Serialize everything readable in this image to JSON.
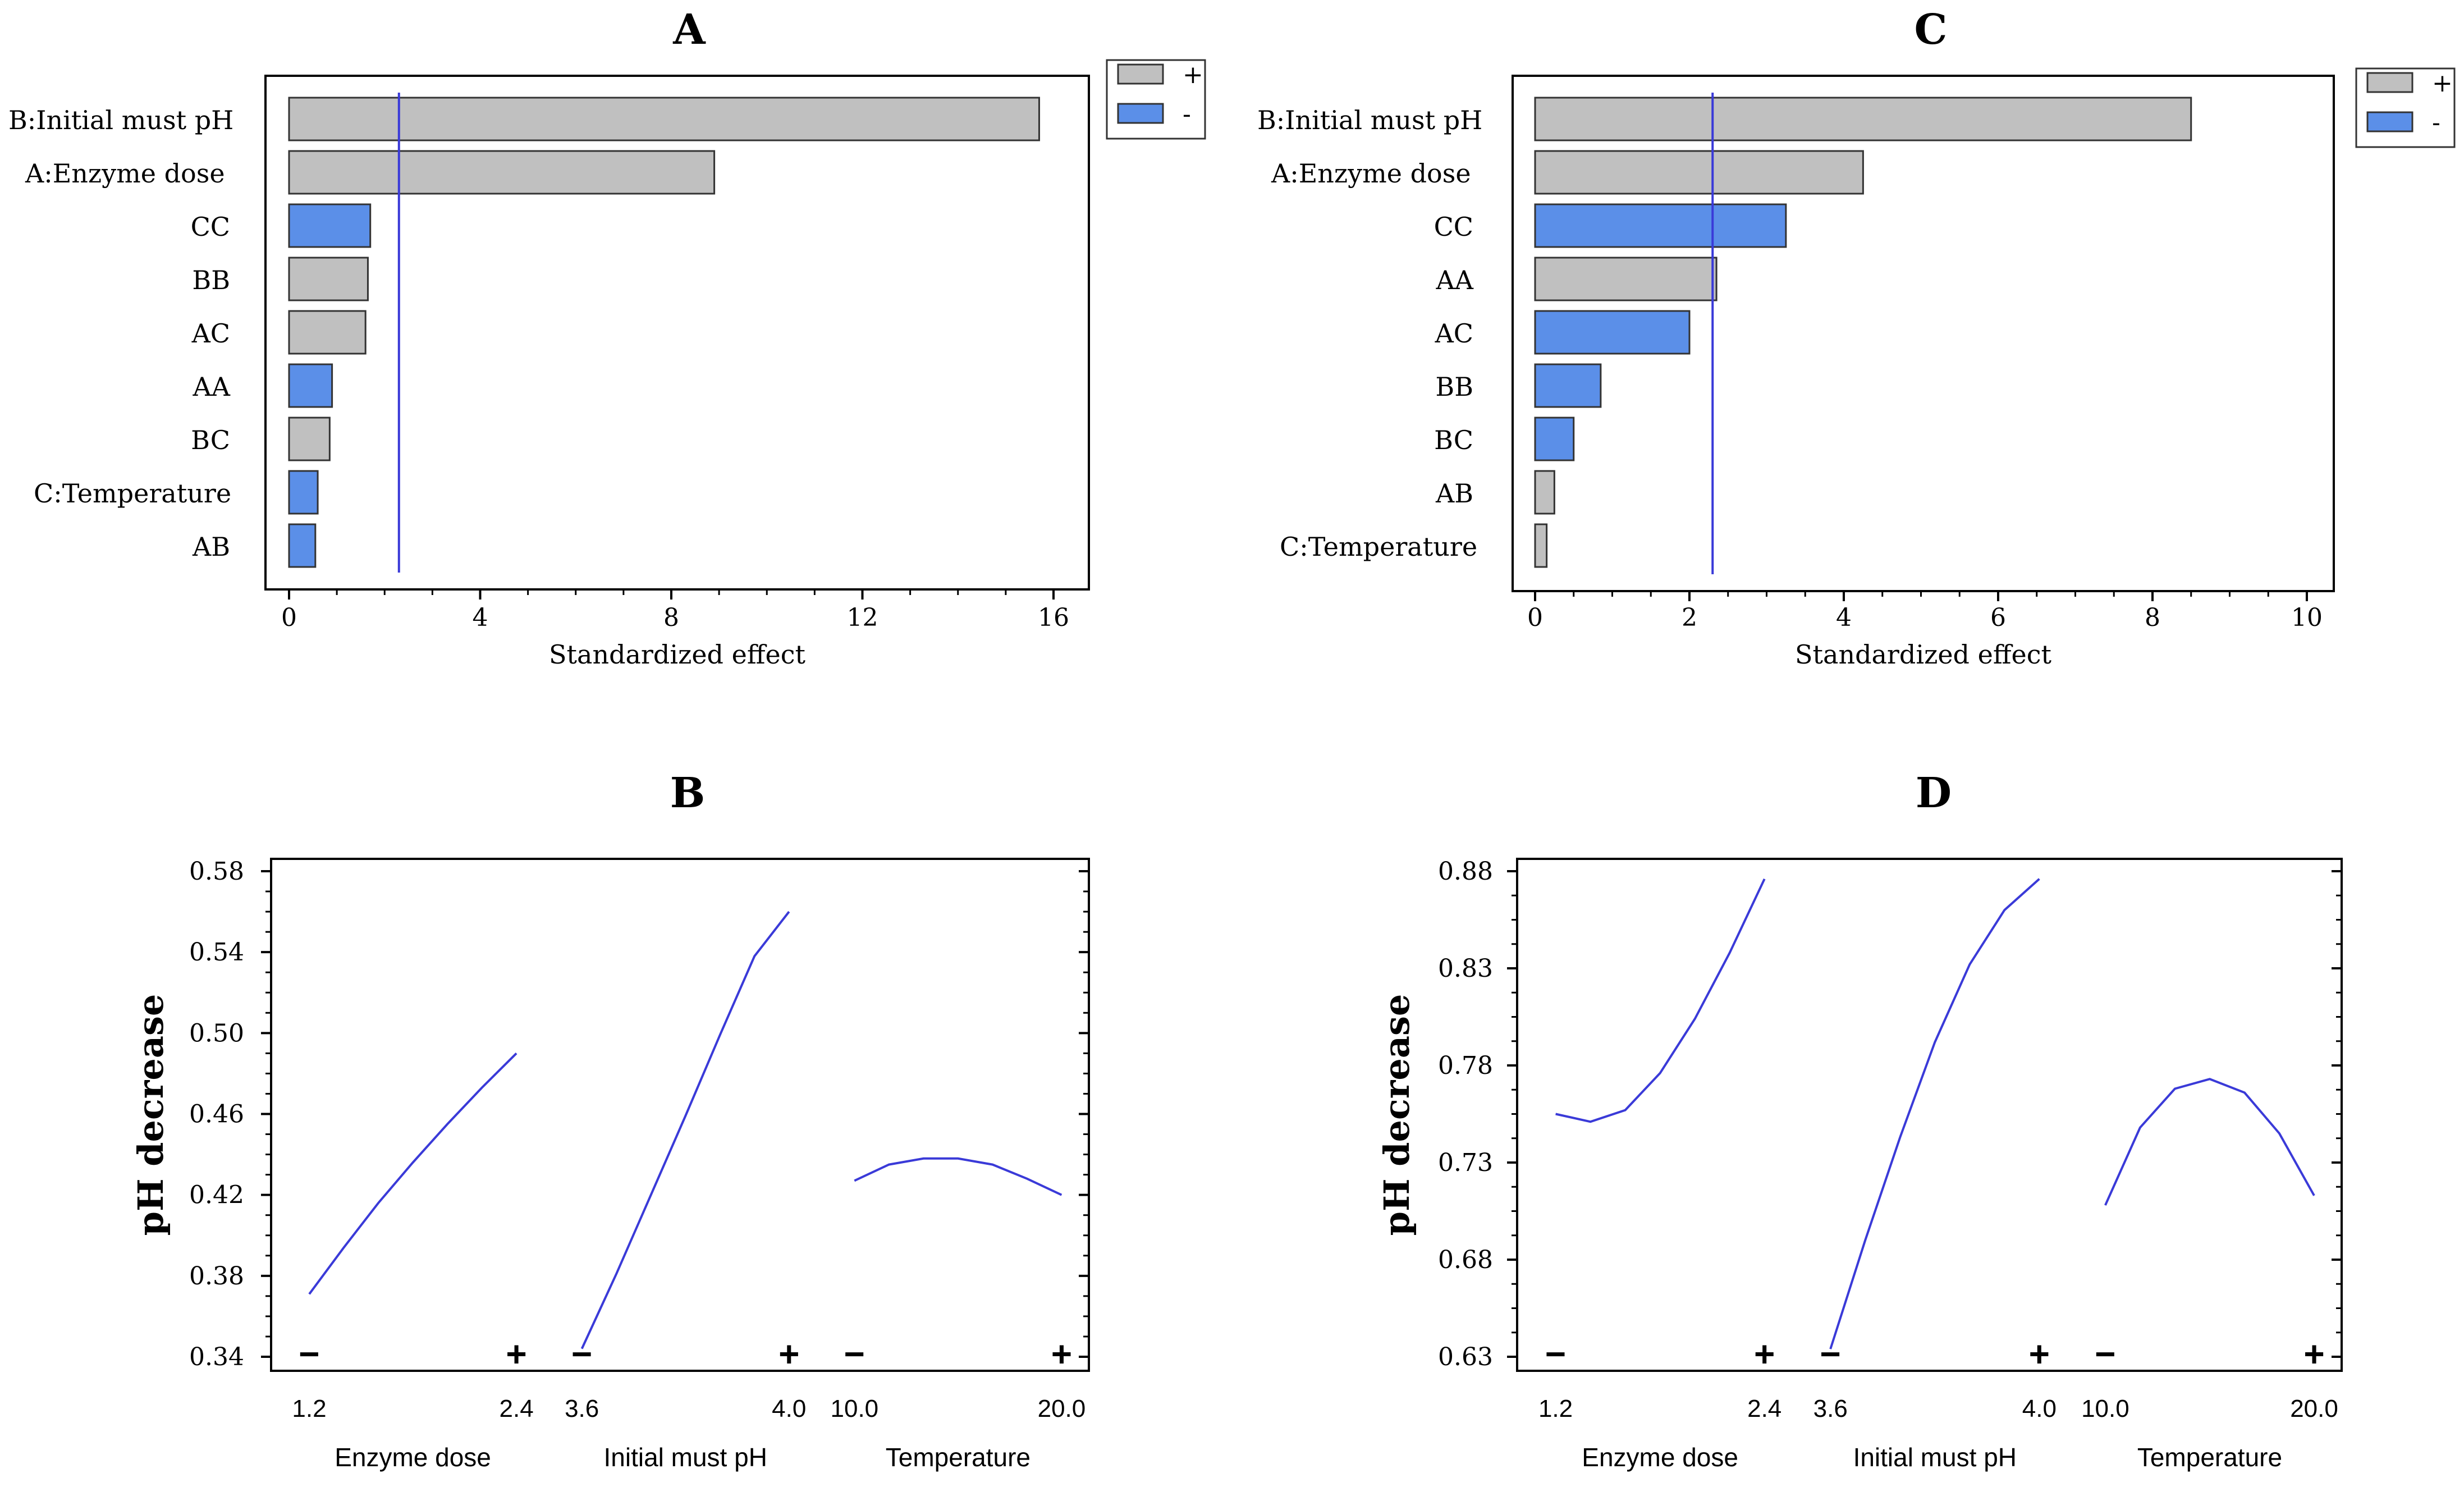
{
  "figure": {
    "panels": [
      "A",
      "B",
      "C",
      "D"
    ]
  },
  "colors": {
    "positive": "#c0c0c0",
    "negative": "#5b8fe8",
    "line": "#3a3ad8",
    "axis": "#000000"
  },
  "chart_data": [
    {
      "id": "A",
      "type": "bar",
      "orientation": "horizontal",
      "title": "A",
      "xlabel": "Standardized effect",
      "xlim": [
        0,
        16
      ],
      "xticks": [
        0,
        4,
        8,
        12,
        16
      ],
      "threshold": 2.3,
      "categories": [
        "B:Initial must pH",
        "A:Enzyme dose",
        "CC",
        "BB",
        "AC",
        "AA",
        "BC",
        "C:Temperature",
        "AB"
      ],
      "values": [
        15.7,
        8.9,
        1.7,
        1.65,
        1.6,
        0.9,
        0.85,
        0.6,
        0.55
      ],
      "signs": [
        "+",
        "+",
        "-",
        "+",
        "+",
        "-",
        "+",
        "-",
        "-"
      ],
      "legend": [
        {
          "label": "+",
          "sign": "+"
        },
        {
          "label": "-",
          "sign": "-"
        }
      ],
      "legend_position": "right"
    },
    {
      "id": "C",
      "type": "bar",
      "orientation": "horizontal",
      "title": "C",
      "xlabel": "Standardized effect",
      "xlim": [
        0,
        10
      ],
      "xticks": [
        0,
        2,
        4,
        6,
        8,
        10
      ],
      "threshold": 2.3,
      "categories": [
        "B:Initial must pH",
        "A:Enzyme dose",
        "CC",
        "AA",
        "AC",
        "BB",
        "BC",
        "AB",
        "C:Temperature"
      ],
      "values": [
        8.5,
        4.25,
        3.25,
        2.35,
        2.0,
        0.85,
        0.5,
        0.25,
        0.15
      ],
      "signs": [
        "+",
        "+",
        "-",
        "+",
        "-",
        "-",
        "-",
        "+",
        "+"
      ],
      "legend": [
        {
          "label": "+",
          "sign": "+"
        },
        {
          "label": "-",
          "sign": "-"
        }
      ],
      "legend_position": "right"
    },
    {
      "id": "B",
      "type": "line",
      "title": "B",
      "ylabel": "pH decrease",
      "ylim": [
        0.34,
        0.58
      ],
      "yticks": [
        "0.34",
        "0.38",
        "0.42",
        "0.46",
        "0.50",
        "0.54",
        "0.58"
      ],
      "factors": [
        {
          "name": "Enzyme dose",
          "low": "1.2",
          "high": "2.4",
          "minus": "−",
          "plus": "+",
          "y": [
            0.371,
            0.394,
            0.416,
            0.436,
            0.455,
            0.473,
            0.49
          ]
        },
        {
          "name": "Initial must pH",
          "low": "3.6",
          "high": "4.0",
          "minus": "−",
          "plus": "+",
          "y": [
            0.344,
            0.381,
            0.42,
            0.459,
            0.499,
            0.538,
            0.56
          ]
        },
        {
          "name": "Temperature",
          "low": "10.0",
          "high": "20.0",
          "minus": "−",
          "plus": "+",
          "y": [
            0.427,
            0.435,
            0.438,
            0.438,
            0.435,
            0.428,
            0.42
          ]
        }
      ]
    },
    {
      "id": "D",
      "type": "line",
      "title": "D",
      "ylabel": "pH decrease",
      "ylim": [
        0.63,
        0.88
      ],
      "yticks": [
        "0.63",
        "0.68",
        "0.73",
        "0.78",
        "0.83",
        "0.88"
      ],
      "factors": [
        {
          "name": "Enzyme dose",
          "low": "1.2",
          "high": "2.4",
          "minus": "−",
          "plus": "+",
          "y": [
            0.755,
            0.751,
            0.757,
            0.776,
            0.804,
            0.838,
            0.876
          ]
        },
        {
          "name": "Initial must pH",
          "low": "3.6",
          "high": "4.0",
          "minus": "−",
          "plus": "+",
          "y": [
            0.634,
            0.69,
            0.743,
            0.792,
            0.832,
            0.86,
            0.876
          ]
        },
        {
          "name": "Temperature",
          "low": "10.0",
          "high": "20.0",
          "minus": "−",
          "plus": "+",
          "y": [
            0.708,
            0.748,
            0.768,
            0.773,
            0.766,
            0.745,
            0.713
          ]
        }
      ]
    }
  ]
}
